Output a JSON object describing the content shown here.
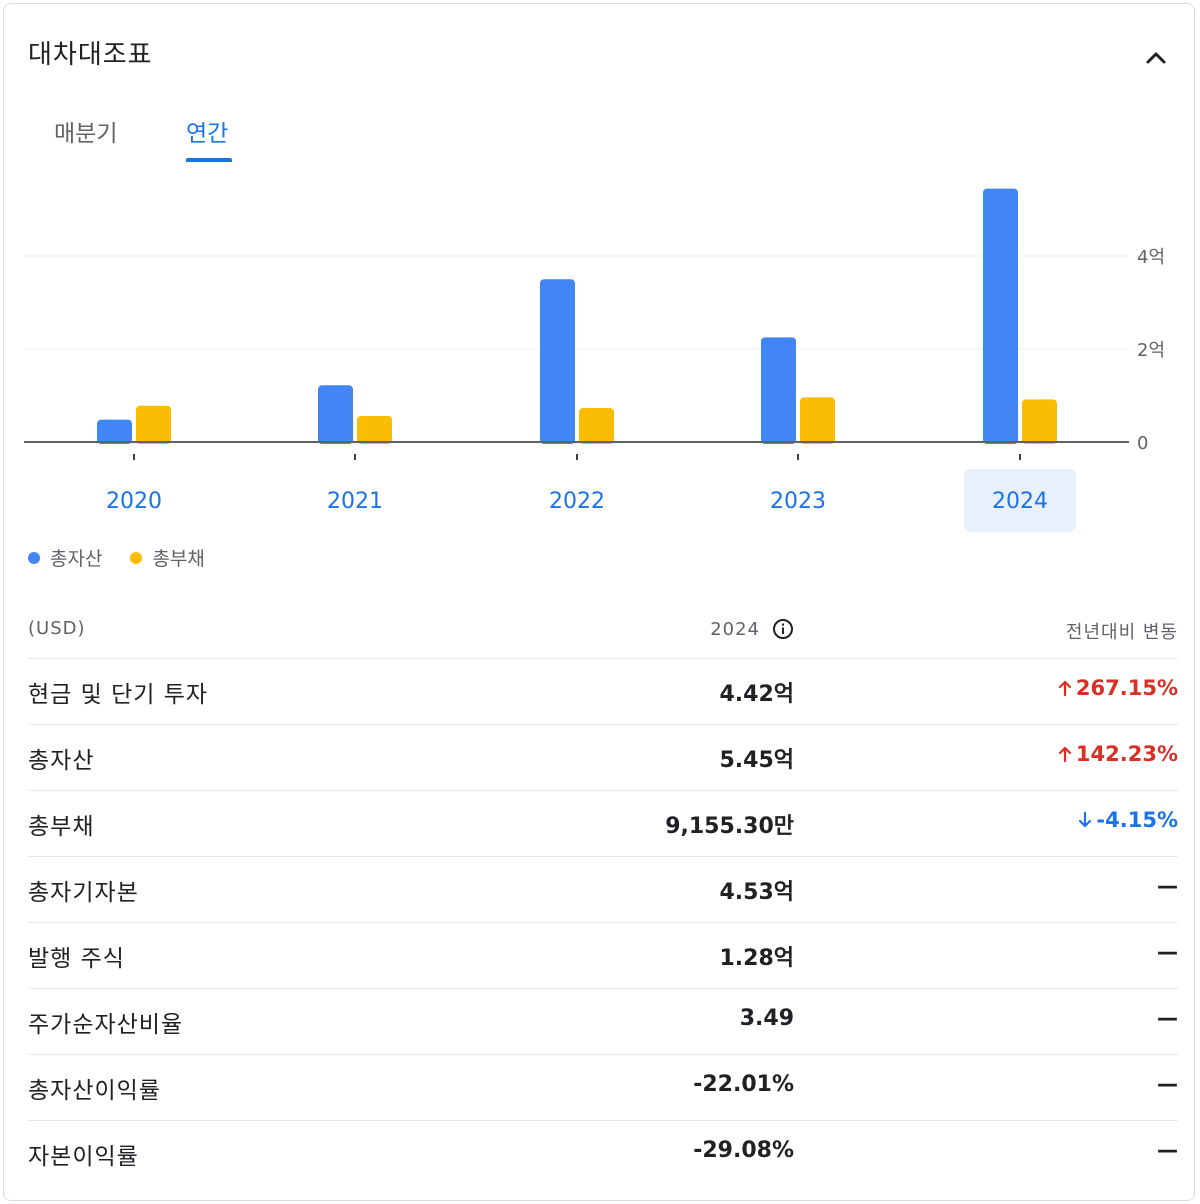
{
  "header": {
    "title": "대차대조표",
    "collapse_icon": "chevron-up-icon"
  },
  "tabs": [
    {
      "label": "매분기",
      "active": false
    },
    {
      "label": "연간",
      "active": true
    }
  ],
  "chart_data": {
    "type": "bar",
    "categories": [
      "2020",
      "2021",
      "2022",
      "2023",
      "2024"
    ],
    "selected_category": "2024",
    "series": [
      {
        "name": "총자산",
        "color": "#4285f4",
        "values": [
          0.48,
          1.22,
          3.5,
          2.25,
          5.45
        ]
      },
      {
        "name": "총부채",
        "color": "#fbbc04",
        "values": [
          0.78,
          0.56,
          0.73,
          0.96,
          0.9155
        ]
      }
    ],
    "y_ticks": [
      {
        "value": 0,
        "label": "0"
      },
      {
        "value": 2,
        "label": "2억"
      },
      {
        "value": 4,
        "label": "4억"
      }
    ],
    "ylim": [
      0,
      6
    ],
    "grid": true,
    "legend_position": "bottom-left"
  },
  "table": {
    "unit_label": "(USD)",
    "year_label": "2024",
    "info_icon": "info-icon",
    "change_label": "전년대비 변동",
    "rows": [
      {
        "label": "현금 및 단기 투자",
        "value": "4.42억",
        "change": "267.15%",
        "direction": "up"
      },
      {
        "label": "총자산",
        "value": "5.45억",
        "change": "142.23%",
        "direction": "up"
      },
      {
        "label": "총부채",
        "value": "9,155.30만",
        "change": "-4.15%",
        "direction": "down"
      },
      {
        "label": "총자기자본",
        "value": "4.53억",
        "change": "—",
        "direction": "none"
      },
      {
        "label": "발행 주식",
        "value": "1.28억",
        "change": "—",
        "direction": "none"
      },
      {
        "label": "주가순자산비율",
        "value": "3.49",
        "change": "—",
        "direction": "none"
      },
      {
        "label": "총자산이익률",
        "value": "-22.01%",
        "change": "—",
        "direction": "none"
      },
      {
        "label": "자본이익률",
        "value": "-29.08%",
        "change": "—",
        "direction": "none"
      }
    ]
  }
}
